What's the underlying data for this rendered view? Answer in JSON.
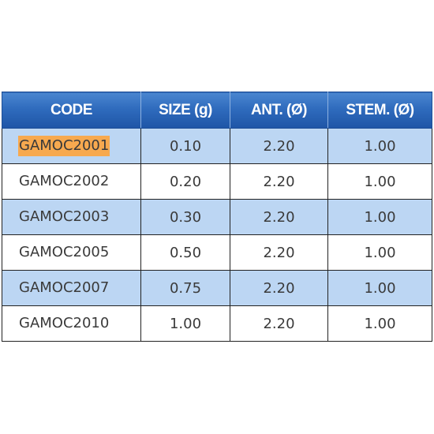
{
  "table": {
    "headers": [
      "CODE",
      "SIZE (g)",
      "ANT. (Ø)",
      "STEM. (Ø)"
    ],
    "rows": [
      {
        "code": "GAMOC2001",
        "size": "0.10",
        "ant": "2.20",
        "stem": "1.00",
        "highlighted": true
      },
      {
        "code": "GAMOC2002",
        "size": "0.20",
        "ant": "2.20",
        "stem": "1.00",
        "highlighted": false
      },
      {
        "code": "GAMOC2003",
        "size": "0.30",
        "ant": "2.20",
        "stem": "1.00",
        "highlighted": false
      },
      {
        "code": "GAMOC2005",
        "size": "0.50",
        "ant": "2.20",
        "stem": "1.00",
        "highlighted": false
      },
      {
        "code": "GAMOC2007",
        "size": "0.75",
        "ant": "2.20",
        "stem": "1.00",
        "highlighted": false
      },
      {
        "code": "GAMOC2010",
        "size": "1.00",
        "ant": "2.20",
        "stem": "1.00",
        "highlighted": false
      }
    ]
  },
  "colors": {
    "header_blue": "#2f6bbd",
    "row_shade": "#bcd6f3",
    "highlight": "#f7a94f"
  }
}
